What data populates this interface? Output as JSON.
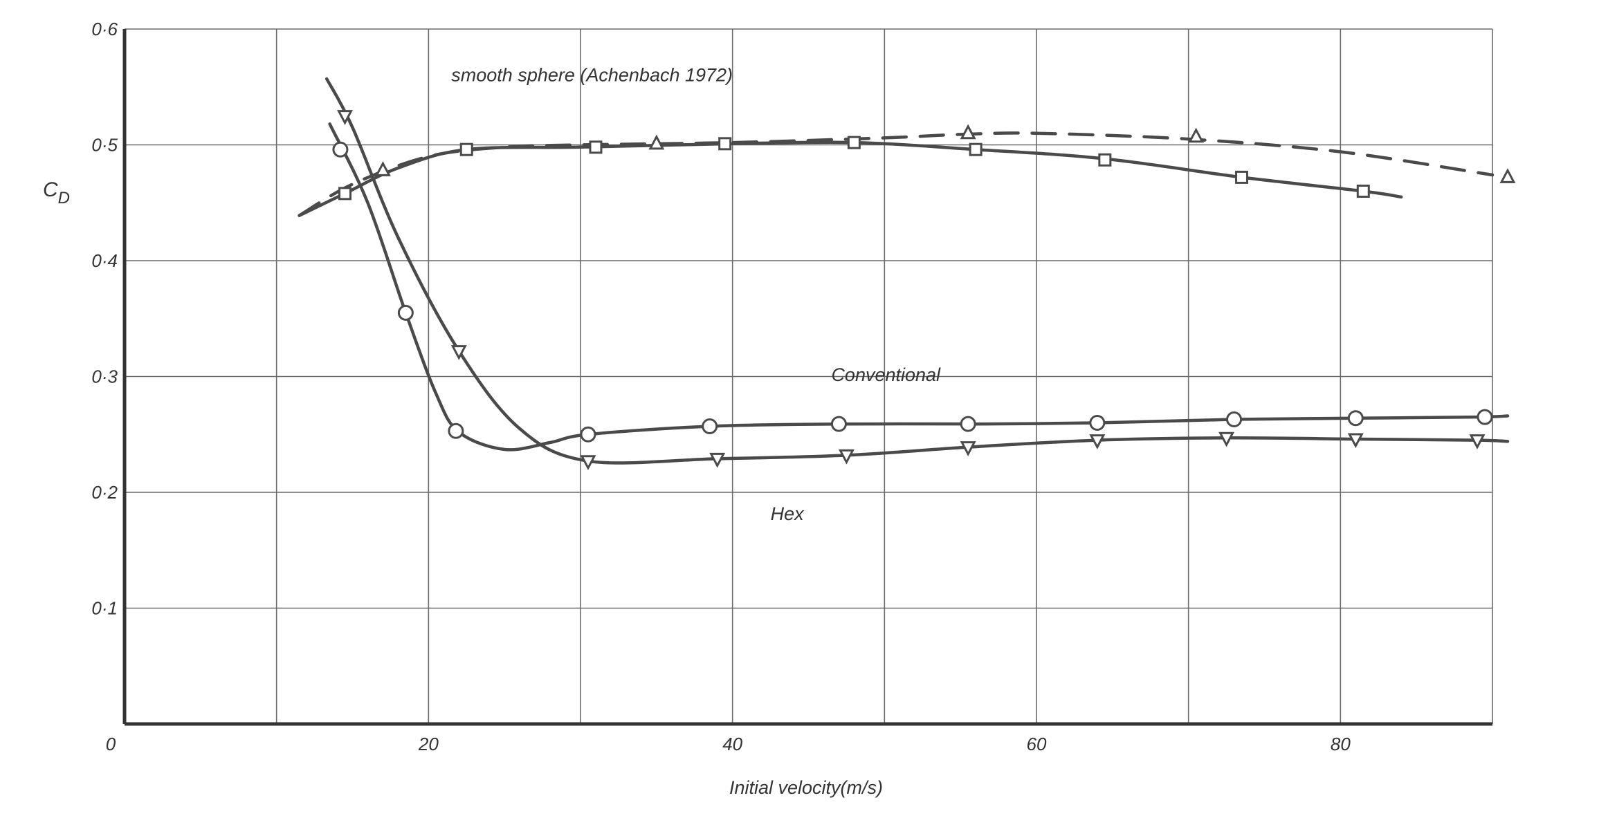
{
  "chart_data": {
    "type": "line",
    "title": "",
    "xlabel": "Initial velocity(m/s)",
    "ylabel": "C_D",
    "ylabel_main": "C",
    "ylabel_sub": "D",
    "xlim": [
      0,
      90
    ],
    "ylim": [
      0,
      0.6
    ],
    "grid": true,
    "x_tick_values": [
      20,
      40,
      60,
      80
    ],
    "x_tick_labels": [
      "20",
      "40",
      "60",
      "80"
    ],
    "x_origin_label": "0",
    "y_tick_values": [
      0.1,
      0.2,
      0.3,
      0.4,
      0.5,
      0.6
    ],
    "y_tick_labels": [
      "0·1",
      "0·2",
      "0·3",
      "0·4",
      "0·5",
      "0·6"
    ],
    "series": [
      {
        "name": "smooth sphere (Achenbach 1972)",
        "marker": "triangle-up",
        "dashed": true,
        "label_x": 21.5,
        "label_y": 0.555,
        "curve": [
          [
            11.5,
            0.439
          ],
          [
            15,
            0.466
          ],
          [
            20,
            0.49
          ],
          [
            25,
            0.498
          ],
          [
            30,
            0.5
          ],
          [
            40,
            0.502
          ],
          [
            50,
            0.506
          ],
          [
            55,
            0.509
          ],
          [
            60,
            0.51
          ],
          [
            70,
            0.505
          ],
          [
            80,
            0.494
          ],
          [
            90,
            0.474
          ]
        ],
        "points": [
          [
            17,
            0.478
          ],
          [
            35,
            0.501
          ],
          [
            55.5,
            0.51
          ],
          [
            70.5,
            0.507
          ],
          [
            91,
            0.472
          ]
        ]
      },
      {
        "name": "",
        "marker": "square",
        "dashed": false,
        "curve": [
          [
            11.5,
            0.439
          ],
          [
            14.5,
            0.458
          ],
          [
            18,
            0.48
          ],
          [
            22.5,
            0.496
          ],
          [
            30,
            0.498
          ],
          [
            40,
            0.501
          ],
          [
            48,
            0.502
          ],
          [
            56,
            0.496
          ],
          [
            64.5,
            0.488
          ],
          [
            73.5,
            0.472
          ],
          [
            81.5,
            0.46
          ],
          [
            84,
            0.455
          ]
        ],
        "points": [
          [
            14.5,
            0.458
          ],
          [
            22.5,
            0.496
          ],
          [
            31,
            0.498
          ],
          [
            39.5,
            0.501
          ],
          [
            48,
            0.502
          ],
          [
            56,
            0.496
          ],
          [
            64.5,
            0.487
          ],
          [
            73.5,
            0.472
          ],
          [
            81.5,
            0.46
          ]
        ]
      },
      {
        "name": "Conventional",
        "marker": "circle",
        "dashed": false,
        "label_x": 46.5,
        "label_y": 0.296,
        "curve": [
          [
            13.5,
            0.518
          ],
          [
            16,
            0.45
          ],
          [
            18.5,
            0.355
          ],
          [
            20.5,
            0.285
          ],
          [
            22,
            0.252
          ],
          [
            25,
            0.237
          ],
          [
            28,
            0.243
          ],
          [
            30.5,
            0.25
          ],
          [
            38.5,
            0.257
          ],
          [
            47,
            0.259
          ],
          [
            56,
            0.259
          ],
          [
            64,
            0.26
          ],
          [
            73,
            0.263
          ],
          [
            81,
            0.264
          ],
          [
            89,
            0.265
          ],
          [
            91,
            0.266
          ]
        ],
        "points": [
          [
            14.2,
            0.496
          ],
          [
            18.5,
            0.355
          ],
          [
            21.8,
            0.253
          ],
          [
            30.5,
            0.25
          ],
          [
            38.5,
            0.257
          ],
          [
            47,
            0.259
          ],
          [
            55.5,
            0.259
          ],
          [
            64,
            0.26
          ],
          [
            73,
            0.263
          ],
          [
            81,
            0.264
          ],
          [
            89.5,
            0.265
          ]
        ]
      },
      {
        "name": "Hex",
        "marker": "triangle-down",
        "dashed": false,
        "label_x": 42.5,
        "label_y": 0.176,
        "curve": [
          [
            13.3,
            0.557
          ],
          [
            15,
            0.515
          ],
          [
            18,
            0.42
          ],
          [
            22,
            0.322
          ],
          [
            26,
            0.255
          ],
          [
            30.5,
            0.227
          ],
          [
            39,
            0.229
          ],
          [
            47.5,
            0.232
          ],
          [
            55.5,
            0.239
          ],
          [
            64,
            0.245
          ],
          [
            72.5,
            0.247
          ],
          [
            81,
            0.246
          ],
          [
            89,
            0.245
          ],
          [
            91,
            0.244
          ]
        ],
        "points": [
          [
            14.5,
            0.525
          ],
          [
            22,
            0.322
          ],
          [
            30.5,
            0.227
          ],
          [
            39,
            0.229
          ],
          [
            47.5,
            0.232
          ],
          [
            55.5,
            0.239
          ],
          [
            64,
            0.245
          ],
          [
            72.5,
            0.247
          ],
          [
            81,
            0.246
          ],
          [
            89,
            0.245
          ]
        ]
      }
    ]
  }
}
